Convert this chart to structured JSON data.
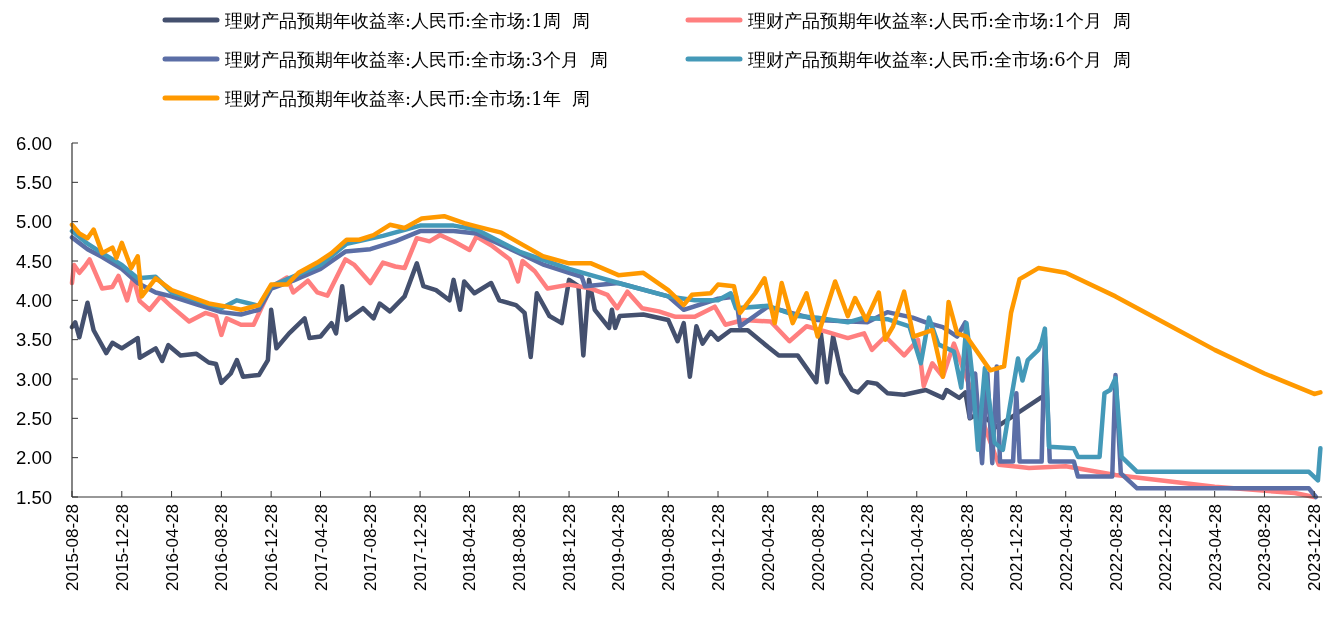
{
  "chart_data": {
    "type": "line",
    "legend": "top",
    "xlim": [
      "2015-08-28",
      "2024-01-16"
    ],
    "xticks": [
      "2015-08-28",
      "2015-12-28",
      "2016-04-28",
      "2016-08-28",
      "2016-12-28",
      "2017-04-28",
      "2017-08-28",
      "2017-12-28",
      "2018-04-28",
      "2018-08-28",
      "2018-12-28",
      "2019-04-28",
      "2019-08-28",
      "2019-12-28",
      "2020-04-28",
      "2020-08-28",
      "2020-12-28",
      "2021-04-28",
      "2021-08-28",
      "2021-12-28",
      "2022-04-28",
      "2022-08-28",
      "2022-12-28",
      "2023-04-28",
      "2023-08-28",
      "2023-12-28"
    ],
    "ylim": [
      1.5,
      6
    ],
    "yticks": [
      {
        "value": 1.5,
        "label": "1.50"
      },
      {
        "value": 2,
        "label": "2.00"
      },
      {
        "value": 2.5,
        "label": "2.50"
      },
      {
        "value": 3,
        "label": "3.00"
      },
      {
        "value": 3.5,
        "label": "3.50"
      },
      {
        "value": 4,
        "label": "4.00"
      },
      {
        "value": 4.5,
        "label": "4.50"
      },
      {
        "value": 5,
        "label": "5.00"
      },
      {
        "value": 5.5,
        "label": "5.50"
      },
      {
        "value": 6,
        "label": "6.00"
      }
    ],
    "series": [
      {
        "name": "理财产品预期年收益率:人民币:全市场:1周  周",
        "color": "#44506e",
        "x": [
          "2015-08-28",
          "2015-09-05",
          "2015-09-15",
          "2015-10-05",
          "2015-10-20",
          "2015-11-20",
          "2015-12-05",
          "2015-12-28",
          "2016-02-05",
          "2016-02-10",
          "2016-03-20",
          "2016-04-05",
          "2016-04-20",
          "2016-05-20",
          "2016-06-28",
          "2016-07-28",
          "2016-08-15",
          "2016-08-28",
          "2016-09-20",
          "2016-10-05",
          "2016-10-20",
          "2016-11-28",
          "2016-12-20",
          "2016-12-28",
          "2017-01-10",
          "2017-02-10",
          "2017-03-20",
          "2017-04-01",
          "2017-04-28",
          "2017-05-25",
          "2017-06-05",
          "2017-06-20",
          "2017-07-01",
          "2017-08-10",
          "2017-09-05",
          "2017-09-20",
          "2017-10-15",
          "2017-11-20",
          "2017-12-20",
          "2018-01-05",
          "2018-02-05",
          "2018-03-10",
          "2018-03-20",
          "2018-04-05",
          "2018-04-15",
          "2018-05-10",
          "2018-06-20",
          "2018-07-10",
          "2018-08-20",
          "2018-09-10",
          "2018-09-25",
          "2018-10-10",
          "2018-11-10",
          "2018-12-10",
          "2018-12-28",
          "2019-01-20",
          "2019-02-01",
          "2019-02-15",
          "2019-03-01",
          "2019-04-05",
          "2019-04-12",
          "2019-04-20",
          "2019-05-01",
          "2019-06-28",
          "2019-08-28",
          "2019-09-20",
          "2019-10-05",
          "2019-10-20",
          "2019-11-05",
          "2019-11-20",
          "2019-12-10",
          "2019-12-28",
          "2020-01-28",
          "2020-03-10",
          "2020-04-28",
          "2020-05-25",
          "2020-07-10",
          "2020-08-05",
          "2020-08-25",
          "2020-09-05",
          "2020-09-20",
          "2020-10-05",
          "2020-10-25",
          "2020-11-20",
          "2020-12-05",
          "2020-12-28",
          "2021-01-20",
          "2021-02-15",
          "2021-03-28",
          "2021-05-20",
          "2021-07-01",
          "2021-07-10",
          "2021-08-10",
          "2021-08-25",
          "2021-09-05",
          "2021-09-28",
          "2021-11-10",
          "2022-02-28"
        ],
        "values": [
          3.66,
          3.72,
          3.53,
          3.97,
          3.62,
          3.33,
          3.46,
          3.39,
          3.52,
          3.27,
          3.39,
          3.23,
          3.43,
          3.3,
          3.32,
          3.21,
          3.19,
          2.95,
          3.07,
          3.24,
          3.03,
          3.05,
          3.24,
          3.88,
          3.39,
          3.58,
          3.77,
          3.52,
          3.54,
          3.71,
          3.58,
          4.18,
          3.75,
          3.9,
          3.77,
          3.96,
          3.86,
          4.05,
          4.47,
          4.18,
          4.13,
          4.0,
          4.26,
          3.88,
          4.24,
          4.09,
          4.22,
          4.0,
          3.94,
          3.84,
          3.28,
          4.09,
          3.8,
          3.71,
          4.26,
          4.18,
          3.3,
          4.26,
          3.88,
          3.65,
          3.88,
          3.65,
          3.8,
          3.82,
          3.75,
          3.48,
          3.71,
          3.03,
          3.67,
          3.45,
          3.6,
          3.5,
          3.62,
          3.62,
          3.41,
          3.3,
          3.3,
          3.11,
          2.96,
          3.58,
          2.96,
          3.54,
          3.07,
          2.86,
          2.83,
          2.96,
          2.94,
          2.82,
          2.8,
          2.86,
          2.76,
          2.86,
          2.76,
          2.83,
          2.5,
          2.57,
          2.39,
          2.77
        ]
      },
      {
        "name": "理财产品预期年收益率:人民币:全市场:1个月  周",
        "color": "#ff7f7f",
        "x": [
          "2015-08-28",
          "2015-09-02",
          "2015-09-15",
          "2015-09-28",
          "2015-10-10",
          "2015-11-10",
          "2015-12-05",
          "2015-12-20",
          "2016-01-10",
          "2016-01-25",
          "2016-02-10",
          "2016-03-05",
          "2016-04-01",
          "2016-04-28",
          "2016-06-10",
          "2016-07-20",
          "2016-08-15",
          "2016-08-28",
          "2016-09-10",
          "2016-10-15",
          "2016-11-15",
          "2016-12-28",
          "2017-02-05",
          "2017-02-20",
          "2017-03-28",
          "2017-04-20",
          "2017-05-15",
          "2017-06-28",
          "2017-07-20",
          "2017-08-28",
          "2017-09-28",
          "2017-10-28",
          "2017-11-20",
          "2017-12-20",
          "2018-01-20",
          "2018-02-15",
          "2018-03-20",
          "2018-04-28",
          "2018-05-15",
          "2018-06-20",
          "2018-08-05",
          "2018-08-25",
          "2018-09-05",
          "2018-10-05",
          "2018-11-05",
          "2018-12-28",
          "2019-02-20",
          "2019-04-01",
          "2019-04-25",
          "2019-05-20",
          "2019-06-25",
          "2019-08-05",
          "2019-09-15",
          "2019-11-01",
          "2019-12-20",
          "2020-01-15",
          "2020-02-28",
          "2020-05-05",
          "2020-06-20",
          "2020-08-01",
          "2020-09-20",
          "2020-11-10",
          "2020-12-20",
          "2021-01-08",
          "2021-02-10",
          "2021-03-28",
          "2021-05-01",
          "2021-05-15",
          "2021-06-05",
          "2021-07-01",
          "2021-07-28",
          "2021-11-15",
          "2022-01-28",
          "2022-04-28",
          "2022-08-28",
          "2023-04-28",
          "2023-11-10",
          "2023-12-28"
        ],
        "values": [
          4.22,
          4.45,
          4.35,
          4.43,
          4.52,
          4.15,
          4.17,
          4.31,
          4.0,
          4.29,
          3.99,
          3.88,
          4.05,
          3.92,
          3.73,
          3.84,
          3.8,
          3.56,
          3.77,
          3.69,
          3.69,
          4.17,
          4.29,
          4.1,
          4.25,
          4.1,
          4.06,
          4.52,
          4.45,
          4.22,
          4.48,
          4.43,
          4.41,
          4.79,
          4.75,
          4.83,
          4.75,
          4.64,
          4.81,
          4.7,
          4.52,
          4.24,
          4.5,
          4.37,
          4.15,
          4.2,
          4.15,
          4.07,
          3.9,
          4.11,
          3.9,
          3.86,
          3.79,
          3.79,
          3.92,
          3.69,
          3.75,
          3.73,
          3.48,
          3.67,
          3.6,
          3.52,
          3.58,
          3.37,
          3.54,
          3.3,
          3.5,
          2.91,
          3.2,
          3.03,
          3.45,
          1.91,
          1.87,
          1.89,
          1.78,
          1.63,
          1.55,
          1.5
        ]
      },
      {
        "name": "理财产品预期年收益率:人民币:全市场:3个月  周",
        "color": "#5b6ea6",
        "x": [
          "2015-08-28",
          "2015-10-05",
          "2015-11-10",
          "2015-12-28",
          "2016-02-05",
          "2016-03-20",
          "2016-04-28",
          "2016-06-28",
          "2016-08-28",
          "2016-10-15",
          "2016-11-28",
          "2016-12-28",
          "2017-02-20",
          "2017-04-28",
          "2017-06-28",
          "2017-08-28",
          "2017-10-28",
          "2017-12-28",
          "2018-03-20",
          "2018-05-15",
          "2018-08-28",
          "2018-10-28",
          "2018-12-28",
          "2019-01-28",
          "2019-02-05",
          "2019-04-28",
          "2019-08-28",
          "2019-10-05",
          "2019-12-28",
          "2020-02-10",
          "2020-02-20",
          "2020-04-28",
          "2020-08-28",
          "2020-12-28",
          "2021-02-15",
          "2021-04-18",
          "2021-05-20",
          "2021-07-01",
          "2021-08-05",
          "2021-08-25",
          "2021-09-05",
          "2021-09-18",
          "2021-10-05",
          "2021-10-18",
          "2021-10-30",
          "2021-11-10",
          "2021-11-18",
          "2021-12-20",
          "2021-12-28",
          "2022-01-05",
          "2022-02-28",
          "2022-03-08",
          "2022-03-20",
          "2022-05-18",
          "2022-05-28",
          "2022-08-20",
          "2022-08-28",
          "2022-09-10",
          "2022-10-20",
          "2023-12-15",
          "2024-01-01"
        ],
        "values": [
          4.8,
          4.65,
          4.55,
          4.4,
          4.22,
          4.1,
          4.05,
          3.95,
          3.85,
          3.82,
          3.88,
          4.15,
          4.25,
          4.4,
          4.62,
          4.65,
          4.75,
          4.88,
          4.88,
          4.85,
          4.6,
          4.45,
          4.35,
          4.3,
          4.18,
          4.22,
          4.05,
          3.88,
          4.02,
          4.05,
          3.67,
          3.92,
          3.75,
          3.72,
          3.85,
          3.78,
          3.72,
          3.66,
          3.54,
          3.72,
          2.51,
          3.07,
          1.93,
          3.07,
          1.93,
          3.16,
          1.95,
          1.95,
          2.82,
          1.95,
          1.95,
          3.54,
          1.95,
          1.95,
          1.76,
          1.76,
          3.05,
          1.8,
          1.61,
          1.61,
          1.5
        ]
      },
      {
        "name": "理财产品预期年收益率:人民币:全市场:6个月  周",
        "color": "#4499b8",
        "x": [
          "2015-08-28",
          "2015-10-05",
          "2015-11-10",
          "2015-12-28",
          "2016-02-05",
          "2016-03-20",
          "2016-04-28",
          "2016-06-28",
          "2016-08-28",
          "2016-10-05",
          "2016-11-28",
          "2016-12-28",
          "2017-04-28",
          "2017-07-01",
          "2017-09-28",
          "2017-12-28",
          "2018-03-20",
          "2018-05-15",
          "2018-08-28",
          "2018-12-28",
          "2019-04-28",
          "2019-08-28",
          "2019-11-01",
          "2019-12-28",
          "2020-01-28",
          "2020-02-10",
          "2020-04-28",
          "2020-07-10",
          "2020-08-28",
          "2020-11-10",
          "2020-12-20",
          "2021-02-15",
          "2021-04-10",
          "2021-05-08",
          "2021-05-28",
          "2021-06-20",
          "2021-07-28",
          "2021-08-15",
          "2021-08-28",
          "2021-09-12",
          "2021-09-25",
          "2021-10-12",
          "2021-11-05",
          "2021-11-25",
          "2021-12-12",
          "2022-01-01",
          "2022-01-12",
          "2022-01-25",
          "2022-02-20",
          "2022-02-28",
          "2022-03-08",
          "2022-03-18",
          "2022-05-18",
          "2022-05-28",
          "2022-07-20",
          "2022-08-01",
          "2022-08-15",
          "2022-08-28",
          "2022-09-12",
          "2022-10-20",
          "2023-12-15",
          "2024-01-06",
          "2024-01-12"
        ],
        "values": [
          4.88,
          4.72,
          4.6,
          4.45,
          4.28,
          4.3,
          4.1,
          4.0,
          3.9,
          4.0,
          3.93,
          4.18,
          4.45,
          4.72,
          4.82,
          4.95,
          4.95,
          4.9,
          4.62,
          4.4,
          4.22,
          4.05,
          4.0,
          4.0,
          4.09,
          3.9,
          3.93,
          3.8,
          3.78,
          3.72,
          3.78,
          3.76,
          3.67,
          3.2,
          3.78,
          3.44,
          3.35,
          2.89,
          3.71,
          3.0,
          2.1,
          3.14,
          2.19,
          2.1,
          2.65,
          3.26,
          2.98,
          3.24,
          3.37,
          3.47,
          3.64,
          2.14,
          2.12,
          2.01,
          2.01,
          2.82,
          2.86,
          3.01,
          2.01,
          1.82,
          1.82,
          1.71,
          2.12
        ]
      },
      {
        "name": "理财产品预期年收益率:人民币:全市场:1年  周",
        "color": "#ff9900",
        "x": [
          "2015-08-28",
          "2015-09-15",
          "2015-10-05",
          "2015-10-20",
          "2015-11-10",
          "2015-12-05",
          "2015-12-15",
          "2015-12-28",
          "2016-01-20",
          "2016-02-05",
          "2016-02-15",
          "2016-03-20",
          "2016-04-28",
          "2016-06-10",
          "2016-07-28",
          "2016-09-10",
          "2016-10-15",
          "2016-11-28",
          "2016-12-28",
          "2017-02-05",
          "2017-03-05",
          "2017-04-20",
          "2017-05-25",
          "2017-07-01",
          "2017-08-01",
          "2017-09-05",
          "2017-10-15",
          "2017-11-20",
          "2018-01-01",
          "2018-02-25",
          "2018-04-15",
          "2018-05-15",
          "2018-07-15",
          "2018-08-28",
          "2018-10-25",
          "2018-12-28",
          "2019-02-20",
          "2019-04-28",
          "2019-06-28",
          "2019-08-28",
          "2019-10-05",
          "2019-10-25",
          "2019-12-10",
          "2019-12-28",
          "2020-02-05",
          "2020-02-20",
          "2020-03-28",
          "2020-04-20",
          "2020-05-15",
          "2020-06-01",
          "2020-06-28",
          "2020-08-01",
          "2020-08-28",
          "2020-10-10",
          "2020-11-10",
          "2020-11-28",
          "2020-12-25",
          "2021-01-25",
          "2021-02-10",
          "2021-03-01",
          "2021-03-28",
          "2021-04-20",
          "2021-06-05",
          "2021-07-01",
          "2021-07-15",
          "2021-08-05",
          "2021-08-28",
          "2021-10-25",
          "2021-11-28",
          "2021-12-15",
          "2022-01-05",
          "2022-02-20",
          "2022-04-28",
          "2022-08-28",
          "2022-12-28",
          "2023-04-28",
          "2023-08-28",
          "2023-12-28",
          "2024-01-12"
        ],
        "values": [
          4.96,
          4.85,
          4.79,
          4.9,
          4.6,
          4.67,
          4.54,
          4.73,
          4.41,
          4.56,
          4.05,
          4.28,
          4.13,
          4.05,
          3.96,
          3.92,
          3.88,
          3.94,
          4.2,
          4.2,
          4.35,
          4.48,
          4.6,
          4.77,
          4.77,
          4.83,
          4.96,
          4.92,
          5.04,
          5.07,
          4.98,
          4.94,
          4.86,
          4.73,
          4.56,
          4.47,
          4.47,
          4.32,
          4.35,
          4.13,
          3.94,
          4.07,
          4.09,
          4.2,
          4.18,
          3.84,
          4.09,
          4.28,
          3.71,
          4.22,
          3.71,
          4.09,
          3.54,
          4.24,
          3.8,
          4.03,
          3.75,
          4.1,
          3.5,
          3.67,
          4.11,
          3.54,
          3.62,
          3.03,
          3.98,
          3.58,
          3.54,
          3.11,
          3.16,
          3.84,
          4.27,
          4.41,
          4.35,
          4.05,
          3.71,
          3.37,
          3.07,
          2.81,
          2.83
        ]
      }
    ]
  }
}
